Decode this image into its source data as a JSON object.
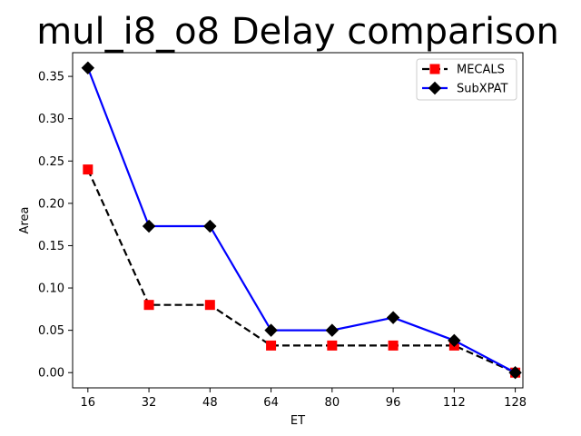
{
  "chart_data": {
    "type": "line",
    "title": "mul_i8_o8 Delay comparison",
    "xlabel": "ET",
    "ylabel": "Area",
    "x": [
      16,
      32,
      48,
      64,
      80,
      96,
      112,
      128
    ],
    "x_ticks": [
      "16",
      "32",
      "48",
      "64",
      "80",
      "96",
      "112",
      "128"
    ],
    "y_ticks": [
      "0.00",
      "0.05",
      "0.10",
      "0.15",
      "0.20",
      "0.25",
      "0.30",
      "0.35"
    ],
    "xlim": [
      12,
      130
    ],
    "ylim": [
      -0.018,
      0.378
    ],
    "grid": false,
    "legend_position": "top-right",
    "series": [
      {
        "name": "MECALS",
        "values": [
          0.24,
          0.08,
          0.08,
          0.032,
          0.032,
          0.032,
          0.032,
          0.0
        ],
        "line_color": "#000000",
        "line_style": "dashed",
        "marker": "square",
        "marker_color": "#ff0000"
      },
      {
        "name": "SubXPAT",
        "values": [
          0.36,
          0.173,
          0.173,
          0.05,
          0.05,
          0.065,
          0.038,
          0.0
        ],
        "line_color": "#0000ff",
        "line_style": "solid",
        "marker": "diamond",
        "marker_color": "#000000"
      }
    ]
  }
}
